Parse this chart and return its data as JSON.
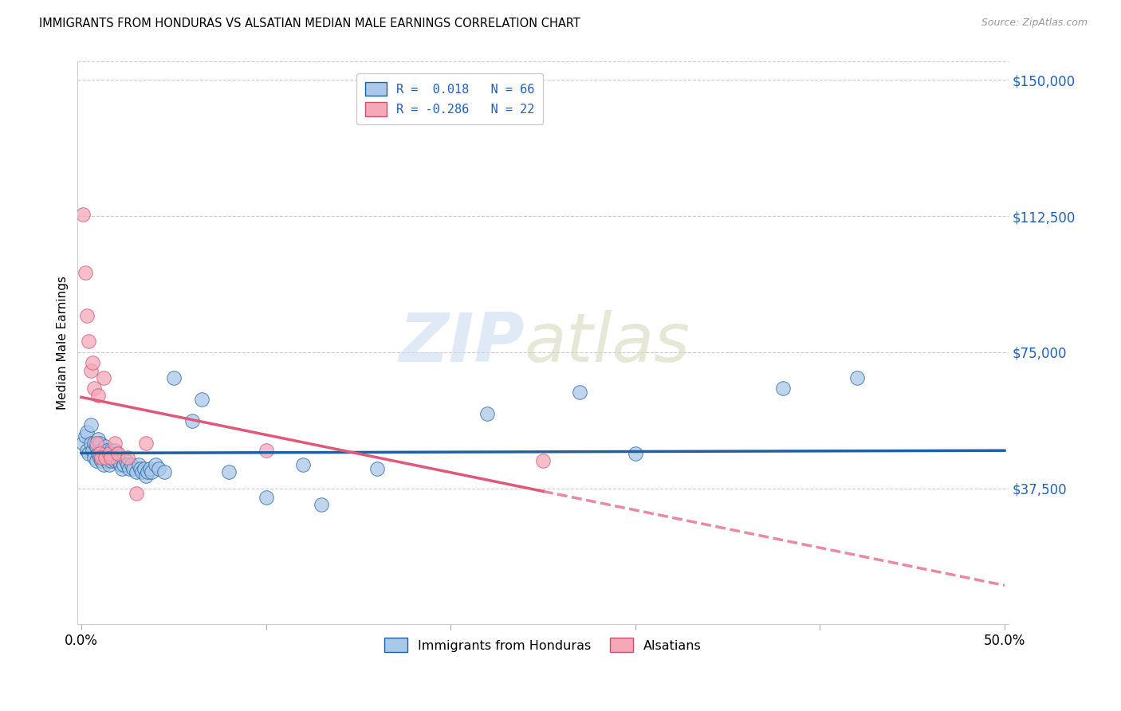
{
  "title": "IMMIGRANTS FROM HONDURAS VS ALSATIAN MEDIAN MALE EARNINGS CORRELATION CHART",
  "source": "Source: ZipAtlas.com",
  "ylabel": "Median Male Earnings",
  "yticks": [
    0,
    37500,
    75000,
    112500,
    150000
  ],
  "xlim": [
    0.0,
    0.5
  ],
  "ylim": [
    0,
    155000
  ],
  "blue_R": 0.018,
  "blue_N": 66,
  "pink_R": -0.286,
  "pink_N": 22,
  "blue_color": "#aac8e8",
  "pink_color": "#f4a8b8",
  "blue_line_color": "#2060a0",
  "pink_line_color": "#e05878",
  "legend_color": "#2060b8",
  "blue_points_x": [
    0.001,
    0.002,
    0.003,
    0.003,
    0.004,
    0.005,
    0.005,
    0.006,
    0.007,
    0.007,
    0.008,
    0.008,
    0.009,
    0.009,
    0.01,
    0.01,
    0.011,
    0.011,
    0.012,
    0.012,
    0.013,
    0.013,
    0.014,
    0.014,
    0.015,
    0.015,
    0.016,
    0.016,
    0.017,
    0.018,
    0.018,
    0.019,
    0.02,
    0.021,
    0.022,
    0.023,
    0.024,
    0.025,
    0.026,
    0.027,
    0.028,
    0.03,
    0.031,
    0.032,
    0.033,
    0.034,
    0.035,
    0.036,
    0.037,
    0.038,
    0.04,
    0.042,
    0.045,
    0.05,
    0.06,
    0.065,
    0.08,
    0.1,
    0.12,
    0.13,
    0.16,
    0.22,
    0.27,
    0.3,
    0.38,
    0.42
  ],
  "blue_points_y": [
    50000,
    52000,
    48000,
    53000,
    47000,
    50000,
    55000,
    48000,
    46000,
    50000,
    45000,
    49000,
    47000,
    51000,
    46000,
    50000,
    45000,
    48000,
    44000,
    47000,
    46000,
    49000,
    45000,
    48000,
    44000,
    47000,
    45000,
    48000,
    46000,
    45000,
    48000,
    47000,
    45000,
    44000,
    43000,
    44000,
    45000,
    44000,
    43000,
    44000,
    43000,
    42000,
    44000,
    43000,
    42000,
    43000,
    41000,
    42000,
    43000,
    42000,
    44000,
    43000,
    42000,
    68000,
    56000,
    62000,
    42000,
    35000,
    44000,
    33000,
    43000,
    58000,
    64000,
    47000,
    65000,
    68000
  ],
  "pink_points_x": [
    0.001,
    0.002,
    0.003,
    0.004,
    0.005,
    0.006,
    0.007,
    0.008,
    0.009,
    0.01,
    0.011,
    0.012,
    0.013,
    0.015,
    0.016,
    0.018,
    0.02,
    0.025,
    0.03,
    0.035,
    0.1,
    0.25
  ],
  "pink_points_y": [
    113000,
    97000,
    85000,
    78000,
    70000,
    72000,
    65000,
    50000,
    63000,
    47000,
    46000,
    68000,
    46000,
    47000,
    46000,
    50000,
    47000,
    46000,
    36000,
    50000,
    48000,
    45000
  ],
  "blue_line_start_x": 0.0,
  "blue_line_end_x": 0.5,
  "blue_line_y_intercept": 47500,
  "blue_line_slope": 500,
  "pink_line_start_x": 0.0,
  "pink_line_end_x": 0.25,
  "pink_line_dashed_end_x": 0.5,
  "pink_line_y_intercept": 68000,
  "pink_line_slope": -100000
}
